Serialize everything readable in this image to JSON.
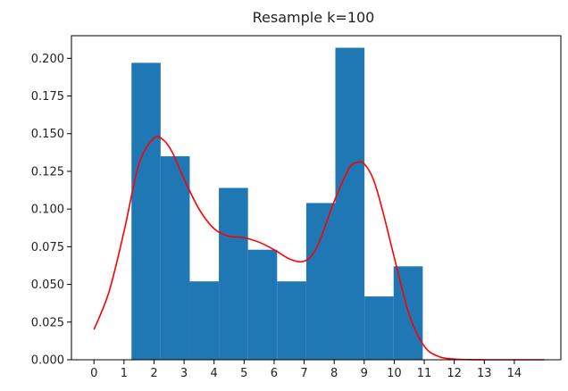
{
  "chart_data": {
    "type": "bar",
    "title": "Resample k=100",
    "xlabel": "",
    "ylabel": "",
    "xlim": [
      -0.75,
      15.55
    ],
    "ylim": [
      0,
      0.215
    ],
    "x_ticks": [
      0,
      1,
      2,
      3,
      4,
      5,
      6,
      7,
      8,
      9,
      10,
      11,
      12,
      13,
      14
    ],
    "y_ticks": [
      "0.000",
      "0.025",
      "0.050",
      "0.075",
      "0.100",
      "0.125",
      "0.150",
      "0.175",
      "0.200"
    ],
    "histogram": {
      "color": "#1f77b4",
      "bins": [
        {
          "x0": 1.25,
          "x1": 2.22,
          "value": 0.197
        },
        {
          "x0": 2.22,
          "x1": 3.19,
          "value": 0.135
        },
        {
          "x0": 3.19,
          "x1": 4.16,
          "value": 0.052
        },
        {
          "x0": 4.16,
          "x1": 5.13,
          "value": 0.114
        },
        {
          "x0": 5.13,
          "x1": 6.1,
          "value": 0.073
        },
        {
          "x0": 6.1,
          "x1": 7.07,
          "value": 0.052
        },
        {
          "x0": 7.07,
          "x1": 8.04,
          "value": 0.104
        },
        {
          "x0": 8.04,
          "x1": 9.01,
          "value": 0.207
        },
        {
          "x0": 9.01,
          "x1": 9.98,
          "value": 0.042
        },
        {
          "x0": 9.98,
          "x1": 10.95,
          "value": 0.062
        }
      ]
    },
    "density_line": {
      "color": "#ff0000",
      "x": [
        0,
        0.5,
        1,
        1.5,
        2,
        2.3,
        2.6,
        3,
        3.5,
        4,
        4.5,
        5,
        5.5,
        6,
        6.5,
        6.9,
        7.2,
        7.5,
        8,
        8.5,
        8.8,
        9,
        9.3,
        9.6,
        10,
        10.5,
        11,
        11.5,
        12,
        12.5,
        13,
        13.5,
        14,
        14.5,
        15
      ],
      "y": [
        0.02,
        0.045,
        0.085,
        0.13,
        0.147,
        0.146,
        0.138,
        0.12,
        0.1,
        0.087,
        0.082,
        0.081,
        0.078,
        0.073,
        0.067,
        0.065,
        0.068,
        0.078,
        0.105,
        0.127,
        0.131,
        0.13,
        0.12,
        0.1,
        0.068,
        0.03,
        0.009,
        0.002,
        0.0005,
        0.0001,
        0.0,
        0.0,
        0.0,
        0.0,
        0.0
      ]
    }
  }
}
